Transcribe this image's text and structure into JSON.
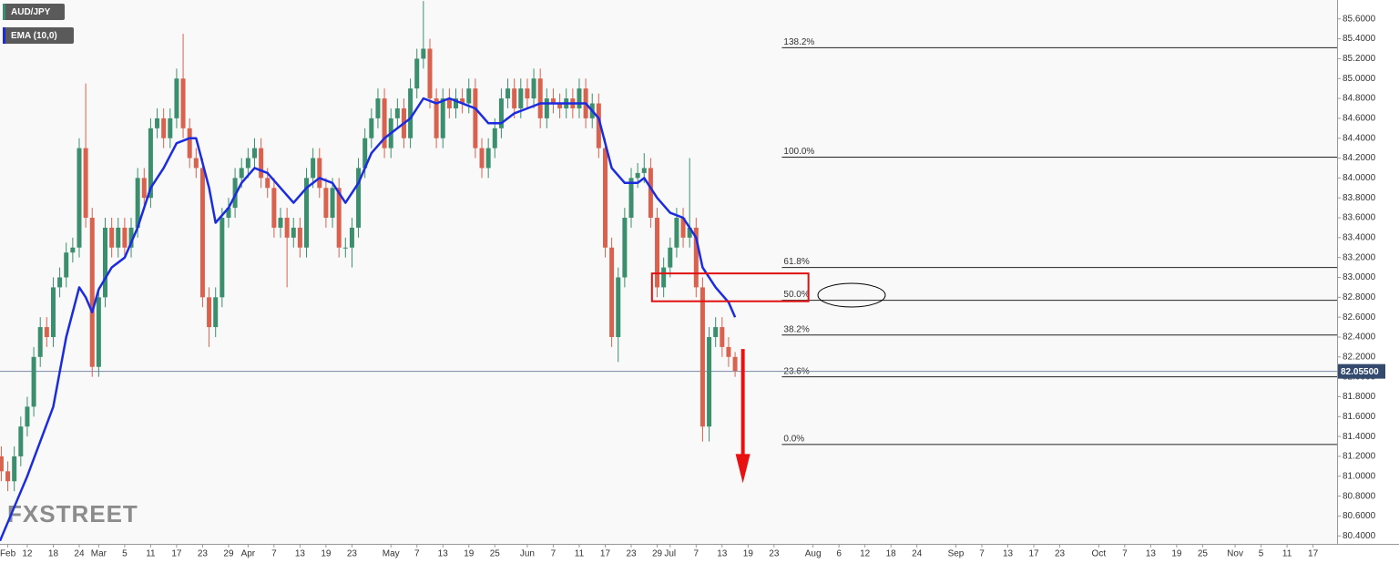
{
  "chart_data": {
    "type": "candlestick",
    "xlim": [
      4.8,
      210.7
    ],
    "ylim": [
      80.32,
      85.79
    ],
    "xticks": [
      {
        "value": 6,
        "label": "Feb"
      },
      {
        "value": 9,
        "label": "12"
      },
      {
        "value": 13,
        "label": "18"
      },
      {
        "value": 17,
        "label": "24"
      },
      {
        "value": 20,
        "label": "Mar"
      },
      {
        "value": 24,
        "label": "5"
      },
      {
        "value": 28,
        "label": "11"
      },
      {
        "value": 32,
        "label": "17"
      },
      {
        "value": 36,
        "label": "23"
      },
      {
        "value": 40,
        "label": "29"
      },
      {
        "value": 43,
        "label": "Apr"
      },
      {
        "value": 47,
        "label": "7"
      },
      {
        "value": 51,
        "label": "13"
      },
      {
        "value": 55,
        "label": "19"
      },
      {
        "value": 59,
        "label": "23"
      },
      {
        "value": 65,
        "label": "May"
      },
      {
        "value": 69,
        "label": "7"
      },
      {
        "value": 73,
        "label": "13"
      },
      {
        "value": 77,
        "label": "19"
      },
      {
        "value": 81,
        "label": "25"
      },
      {
        "value": 86,
        "label": "Jun"
      },
      {
        "value": 90,
        "label": "7"
      },
      {
        "value": 94,
        "label": "11"
      },
      {
        "value": 98,
        "label": "17"
      },
      {
        "value": 102,
        "label": "23"
      },
      {
        "value": 106,
        "label": "29"
      },
      {
        "value": 108,
        "label": "Jul"
      },
      {
        "value": 112,
        "label": "7"
      },
      {
        "value": 116,
        "label": "13"
      },
      {
        "value": 120,
        "label": "19"
      },
      {
        "value": 124,
        "label": "23"
      },
      {
        "value": 130,
        "label": "Aug"
      },
      {
        "value": 134,
        "label": "6"
      },
      {
        "value": 138,
        "label": "12"
      },
      {
        "value": 142,
        "label": "18"
      },
      {
        "value": 146,
        "label": "24"
      },
      {
        "value": 152,
        "label": "Sep"
      },
      {
        "value": 156,
        "label": "7"
      },
      {
        "value": 160,
        "label": "13"
      },
      {
        "value": 164,
        "label": "17"
      },
      {
        "value": 168,
        "label": "23"
      },
      {
        "value": 174,
        "label": "Oct"
      },
      {
        "value": 178,
        "label": "7"
      },
      {
        "value": 182,
        "label": "13"
      },
      {
        "value": 186,
        "label": "19"
      },
      {
        "value": 190,
        "label": "25"
      },
      {
        "value": 195,
        "label": "Nov"
      },
      {
        "value": 199,
        "label": "5"
      },
      {
        "value": 203,
        "label": "11"
      },
      {
        "value": 207,
        "label": "17"
      }
    ],
    "yticks": [
      {
        "value": 80.4,
        "label": "80.4000"
      },
      {
        "value": 80.6,
        "label": "80.6000"
      },
      {
        "value": 80.8,
        "label": "80.8000"
      },
      {
        "value": 81.0,
        "label": "81.0000"
      },
      {
        "value": 81.2,
        "label": "81.2000"
      },
      {
        "value": 81.4,
        "label": "81.4000"
      },
      {
        "value": 81.6,
        "label": "81.6000"
      },
      {
        "value": 81.8,
        "label": "81.8000"
      },
      {
        "value": 82.0,
        "label": "82.0000"
      },
      {
        "value": 82.2,
        "label": "82.2000"
      },
      {
        "value": 82.4,
        "label": "82.4000"
      },
      {
        "value": 82.6,
        "label": "82.6000"
      },
      {
        "value": 82.8,
        "label": "82.8000"
      },
      {
        "value": 83.0,
        "label": "83.0000"
      },
      {
        "value": 83.2,
        "label": "83.2000"
      },
      {
        "value": 83.4,
        "label": "83.4000"
      },
      {
        "value": 83.6,
        "label": "83.6000"
      },
      {
        "value": 83.8,
        "label": "83.8000"
      },
      {
        "value": 84.0,
        "label": "84.0000"
      },
      {
        "value": 84.2,
        "label": "84.2000"
      },
      {
        "value": 84.4,
        "label": "84.4000"
      },
      {
        "value": 84.6,
        "label": "84.6000"
      },
      {
        "value": 84.8,
        "label": "84.8000"
      },
      {
        "value": 85.0,
        "label": "85.0000"
      },
      {
        "value": 85.2,
        "label": "85.2000"
      },
      {
        "value": 85.4,
        "label": "85.4000"
      },
      {
        "value": 85.6,
        "label": "85.6000"
      }
    ],
    "series": [
      {
        "name": "AUD/JPY",
        "type": "candlestick",
        "up_color": "#3b8f6e",
        "down_color": "#d9624f",
        "x": [
          5,
          6,
          7,
          8,
          9,
          10,
          11,
          12,
          13,
          14,
          15,
          16,
          17,
          18,
          19,
          20,
          21,
          22,
          23,
          24,
          25,
          26,
          27,
          28,
          29,
          30,
          31,
          32,
          33,
          34,
          35,
          36,
          37,
          38,
          39,
          40,
          41,
          42,
          43,
          44,
          45,
          46,
          47,
          48,
          49,
          50,
          51,
          52,
          53,
          54,
          55,
          56,
          57,
          58,
          59,
          60,
          61,
          62,
          63,
          64,
          65,
          66,
          67,
          68,
          69,
          70,
          71,
          72,
          73,
          74,
          75,
          76,
          77,
          78,
          79,
          80,
          81,
          82,
          83,
          84,
          85,
          86,
          87,
          88,
          89,
          90,
          91,
          92,
          93,
          94,
          95,
          96,
          97,
          98,
          99,
          100,
          101,
          102,
          103,
          104,
          105,
          106,
          107,
          108,
          109,
          110,
          111,
          112,
          113,
          114,
          115,
          116,
          117,
          118
        ],
        "open": [
          81.2,
          81.05,
          80.95,
          81.2,
          81.5,
          81.7,
          82.2,
          82.5,
          82.4,
          82.9,
          83.0,
          83.25,
          83.3,
          84.3,
          83.6,
          82.1,
          82.8,
          83.5,
          83.3,
          83.5,
          83.3,
          83.5,
          84.0,
          83.8,
          84.5,
          84.6,
          84.4,
          84.6,
          85.0,
          84.5,
          84.2,
          84.1,
          82.8,
          82.5,
          82.8,
          83.6,
          83.7,
          84.0,
          84.1,
          84.2,
          84.3,
          84.0,
          83.9,
          83.5,
          83.6,
          83.4,
          83.5,
          83.3,
          84.0,
          84.2,
          83.9,
          83.6,
          83.9,
          83.3,
          83.3,
          83.5,
          84.1,
          84.4,
          84.6,
          84.8,
          84.3,
          84.6,
          84.7,
          84.4,
          84.9,
          85.2,
          85.3,
          84.8,
          84.4,
          84.8,
          84.7,
          84.8,
          84.75,
          84.9,
          84.3,
          84.1,
          84.3,
          84.5,
          84.8,
          84.9,
          84.7,
          84.9,
          84.8,
          85.0,
          84.6,
          84.8,
          84.75,
          84.7,
          84.8,
          84.7,
          84.9,
          84.6,
          84.75,
          84.3,
          83.3,
          82.4,
          83.0,
          83.6,
          84.0,
          84.05,
          84.1,
          83.6,
          82.9,
          83.1,
          83.3,
          83.6,
          83.4,
          83.5,
          82.9,
          81.5,
          82.4,
          82.5,
          82.3,
          82.2
        ],
        "high": [
          81.3,
          81.15,
          81.3,
          81.6,
          81.8,
          82.3,
          82.6,
          82.6,
          83.0,
          83.1,
          83.35,
          83.4,
          84.4,
          84.95,
          83.7,
          82.9,
          83.6,
          83.6,
          83.6,
          83.6,
          83.6,
          84.1,
          84.1,
          84.6,
          84.7,
          84.7,
          84.7,
          85.1,
          85.45,
          84.6,
          84.3,
          84.2,
          82.9,
          82.9,
          83.7,
          83.8,
          84.1,
          84.2,
          84.3,
          84.4,
          84.4,
          84.1,
          84.0,
          83.7,
          83.7,
          83.6,
          83.6,
          84.1,
          84.3,
          84.3,
          84.0,
          84.0,
          84.0,
          83.4,
          83.6,
          84.2,
          84.5,
          84.7,
          84.9,
          84.9,
          84.7,
          84.8,
          84.8,
          85.0,
          85.3,
          85.78,
          85.4,
          84.9,
          84.9,
          84.9,
          84.9,
          84.9,
          85.0,
          85.0,
          84.4,
          84.4,
          84.6,
          84.9,
          85.0,
          85.0,
          85.0,
          85.0,
          85.1,
          85.1,
          84.9,
          84.9,
          84.85,
          84.9,
          84.9,
          85.0,
          85.0,
          84.85,
          84.85,
          84.4,
          83.4,
          83.1,
          83.7,
          84.1,
          84.15,
          84.25,
          84.2,
          83.7,
          83.2,
          83.4,
          83.7,
          83.7,
          84.2,
          83.6,
          83.0,
          82.5,
          82.6,
          82.6,
          82.4,
          82.25
        ],
        "low": [
          80.95,
          80.85,
          80.85,
          81.1,
          81.4,
          81.6,
          82.1,
          82.3,
          82.3,
          82.8,
          82.9,
          83.15,
          83.2,
          83.5,
          82.0,
          82.0,
          82.7,
          83.2,
          83.2,
          83.2,
          83.2,
          83.4,
          83.7,
          83.7,
          84.4,
          84.3,
          84.3,
          84.5,
          84.4,
          84.1,
          84.0,
          82.7,
          82.3,
          82.4,
          82.7,
          83.5,
          83.6,
          83.9,
          84.0,
          84.1,
          83.9,
          83.8,
          83.4,
          83.4,
          82.9,
          83.3,
          83.2,
          83.2,
          83.9,
          83.8,
          83.5,
          83.5,
          83.2,
          83.2,
          83.1,
          83.4,
          84.0,
          84.3,
          84.5,
          84.2,
          84.2,
          84.5,
          84.3,
          84.3,
          84.8,
          85.1,
          84.7,
          84.3,
          84.3,
          84.6,
          84.6,
          84.65,
          84.65,
          84.2,
          84.0,
          84.0,
          84.2,
          84.4,
          84.7,
          84.6,
          84.6,
          84.7,
          84.7,
          84.5,
          84.5,
          84.65,
          84.6,
          84.6,
          84.6,
          84.6,
          84.5,
          84.5,
          84.2,
          83.2,
          82.3,
          82.15,
          82.9,
          83.5,
          83.9,
          83.95,
          83.5,
          82.8,
          82.8,
          83.0,
          83.2,
          83.3,
          83.3,
          82.8,
          81.35,
          81.35,
          82.3,
          82.2,
          82.1,
          82.0
        ],
        "close": [
          81.05,
          80.95,
          81.2,
          81.5,
          81.7,
          82.2,
          82.5,
          82.4,
          82.9,
          83.0,
          83.25,
          83.3,
          84.3,
          83.6,
          82.1,
          82.8,
          83.5,
          83.3,
          83.5,
          83.3,
          83.5,
          84.0,
          83.8,
          84.5,
          84.6,
          84.4,
          84.6,
          85.0,
          84.5,
          84.2,
          84.1,
          82.8,
          82.5,
          82.8,
          83.6,
          83.7,
          84.0,
          84.1,
          84.2,
          84.3,
          84.0,
          83.9,
          83.5,
          83.6,
          83.4,
          83.5,
          83.3,
          84.0,
          84.2,
          83.9,
          83.6,
          83.9,
          83.3,
          83.3,
          83.5,
          84.1,
          84.4,
          84.6,
          84.8,
          84.3,
          84.6,
          84.7,
          84.4,
          84.9,
          85.2,
          85.3,
          84.8,
          84.4,
          84.8,
          84.7,
          84.8,
          84.75,
          84.9,
          84.3,
          84.1,
          84.3,
          84.5,
          84.8,
          84.9,
          84.7,
          84.9,
          84.8,
          85.0,
          84.6,
          84.8,
          84.75,
          84.7,
          84.8,
          84.7,
          84.9,
          84.6,
          84.75,
          84.3,
          83.3,
          82.4,
          83.0,
          83.6,
          84.0,
          84.05,
          84.1,
          83.6,
          82.9,
          83.1,
          83.3,
          83.6,
          83.4,
          83.5,
          82.9,
          81.5,
          82.4,
          82.5,
          82.3,
          82.2,
          82.06
        ]
      },
      {
        "name": "EMA (10,0)",
        "type": "line",
        "color": "#1a2be0",
        "x": [
          4.8,
          9,
          13,
          15,
          17,
          18,
          19,
          20,
          22,
          24,
          26,
          28,
          30,
          32,
          34,
          35,
          37,
          38,
          40,
          42,
          44,
          46,
          48,
          50,
          52,
          54,
          56,
          58,
          60,
          62,
          64,
          66,
          68,
          70,
          72,
          74,
          76,
          78,
          80,
          82,
          84,
          86,
          88,
          92,
          95,
          97,
          99,
          101,
          103,
          104,
          106,
          108,
          110,
          112,
          113,
          115,
          117,
          118
        ],
        "values": [
          80.35,
          81.0,
          81.7,
          82.4,
          82.9,
          82.8,
          82.65,
          82.88,
          83.1,
          83.2,
          83.5,
          83.9,
          84.1,
          84.35,
          84.4,
          84.4,
          83.9,
          83.55,
          83.7,
          83.95,
          84.1,
          84.05,
          83.9,
          83.75,
          83.9,
          84.0,
          83.95,
          83.75,
          83.95,
          84.25,
          84.4,
          84.5,
          84.6,
          84.8,
          84.75,
          84.8,
          84.75,
          84.7,
          84.55,
          84.55,
          84.65,
          84.7,
          84.75,
          84.75,
          84.75,
          84.6,
          84.1,
          83.95,
          83.95,
          84.0,
          83.8,
          83.65,
          83.6,
          83.4,
          83.1,
          82.9,
          82.75,
          82.6
        ]
      }
    ],
    "fib_levels": [
      {
        "label": "138.2%",
        "value": 85.31
      },
      {
        "label": "100.0%",
        "value": 84.21
      },
      {
        "label": "61.8%",
        "value": 83.1
      },
      {
        "label": "50.0%",
        "value": 82.77
      },
      {
        "label": "38.2%",
        "value": 82.42
      },
      {
        "label": "23.6%",
        "value": 82.0
      },
      {
        "label": "0.0%",
        "value": 81.32
      }
    ],
    "fib_x_start": 125.2,
    "current_price": {
      "value": 82.055,
      "label": "82.05500"
    },
    "zone": {
      "x": [
        105.2,
        129.3
      ],
      "y": [
        82.76,
        83.04
      ],
      "color": "#e01010"
    },
    "arrow": {
      "x": 119.2,
      "y": [
        82.28,
        80.93
      ],
      "color": "#e81010"
    },
    "watermark": "FXSTREET"
  }
}
